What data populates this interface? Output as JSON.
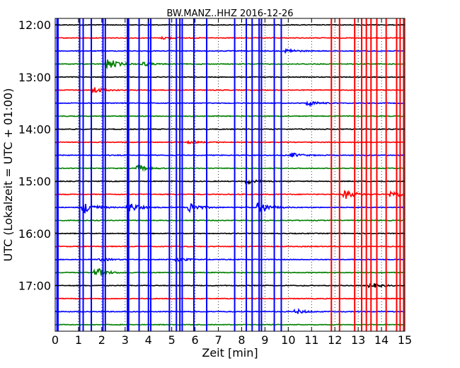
{
  "chart_data": {
    "type": "line",
    "title": "BW.MANZ..HHZ 2016-12-26",
    "xlabel": "Zeit  [min]",
    "ylabel": "UTC (Lokalzeit = UTC + 01:00)",
    "xlim": [
      0,
      15
    ],
    "x_ticks": [
      0,
      1,
      2,
      3,
      4,
      5,
      6,
      7,
      8,
      9,
      10,
      11,
      12,
      13,
      14,
      15
    ],
    "x_tick_labels": [
      "0",
      "1",
      "2",
      "3",
      "4",
      "5",
      "6",
      "7",
      "8",
      "9",
      "10",
      "11",
      "12",
      "13",
      "14",
      "15"
    ],
    "y_ticks_minutes": [
      720,
      780,
      840,
      900,
      960,
      1020
    ],
    "y_tick_labels": [
      "12:00",
      "13:00",
      "14:00",
      "15:00",
      "16:00",
      "17:00"
    ],
    "trace_interval_minutes": 15,
    "first_trace_minutes": 720,
    "vertical_grid": "dotted, every 1 min",
    "colors": {
      "black": "#000000",
      "red": "#ff0000",
      "blue": "#0000ff",
      "green": "#008000"
    },
    "color_cycle": [
      "black",
      "red",
      "blue",
      "green"
    ],
    "series": [
      {
        "name": "12:00",
        "color": "black"
      },
      {
        "name": "12:15",
        "color": "red",
        "events": [
          {
            "t": 4.7,
            "amp": 0.2
          }
        ]
      },
      {
        "name": "12:30",
        "color": "blue",
        "events": [
          {
            "t": 10.0,
            "amp": 0.3
          }
        ]
      },
      {
        "name": "12:45",
        "color": "green",
        "events": [
          {
            "t": 2.3,
            "amp": 0.9
          },
          {
            "t": 3.8,
            "amp": 0.3
          }
        ]
      },
      {
        "name": "13:00",
        "color": "black"
      },
      {
        "name": "13:15",
        "color": "red",
        "events": [
          {
            "t": 1.7,
            "amp": 0.5
          }
        ]
      },
      {
        "name": "13:30",
        "color": "blue",
        "events": [
          {
            "t": 10.9,
            "amp": 0.4
          }
        ]
      },
      {
        "name": "13:45",
        "color": "green"
      },
      {
        "name": "14:00",
        "color": "black"
      },
      {
        "name": "14:15",
        "color": "red",
        "events": [
          {
            "t": 5.8,
            "amp": 0.2
          }
        ]
      },
      {
        "name": "14:30",
        "color": "blue",
        "events": [
          {
            "t": 10.2,
            "amp": 0.35
          }
        ]
      },
      {
        "name": "14:45",
        "color": "green",
        "events": [
          {
            "t": 3.6,
            "amp": 0.5
          }
        ]
      },
      {
        "name": "15:00",
        "color": "black",
        "events": [
          {
            "t": 8.3,
            "amp": 0.35
          }
        ]
      },
      {
        "name": "15:15",
        "color": "red",
        "events": [
          {
            "t": 12.5,
            "amp": 0.75
          },
          {
            "t": 14.5,
            "amp": 0.6
          }
        ]
      },
      {
        "name": "15:30",
        "color": "blue",
        "events": [
          {
            "t": 1.3,
            "amp": 1.0
          },
          {
            "t": 3.2,
            "amp": 0.8
          },
          {
            "t": 5.8,
            "amp": 0.8
          },
          {
            "t": 8.8,
            "amp": 1.0
          }
        ]
      },
      {
        "name": "15:45",
        "color": "green"
      },
      {
        "name": "16:00",
        "color": "black"
      },
      {
        "name": "16:15",
        "color": "red"
      },
      {
        "name": "16:30",
        "color": "blue",
        "events": [
          {
            "t": 2.0,
            "amp": 0.25
          },
          {
            "t": 5.3,
            "amp": 0.3
          }
        ]
      },
      {
        "name": "16:45",
        "color": "green",
        "events": [
          {
            "t": 1.8,
            "amp": 0.8
          }
        ]
      },
      {
        "name": "17:00",
        "color": "black",
        "events": [
          {
            "t": 13.6,
            "amp": 0.4
          }
        ]
      },
      {
        "name": "17:15",
        "color": "red"
      },
      {
        "name": "17:30",
        "color": "blue",
        "events": [
          {
            "t": 10.4,
            "amp": 0.35
          }
        ]
      },
      {
        "name": "17:45",
        "color": "green"
      }
    ],
    "spikes": [
      {
        "t": 0.08,
        "color": "blue"
      },
      {
        "t": 0.12,
        "color": "blue"
      },
      {
        "t": 1.05,
        "color": "blue"
      },
      {
        "t": 1.2,
        "color": "blue"
      },
      {
        "t": 1.55,
        "color": "blue"
      },
      {
        "t": 2.05,
        "color": "blue"
      },
      {
        "t": 2.15,
        "color": "blue"
      },
      {
        "t": 3.1,
        "color": "blue"
      },
      {
        "t": 3.15,
        "color": "blue"
      },
      {
        "t": 3.6,
        "color": "blue"
      },
      {
        "t": 4.0,
        "color": "blue"
      },
      {
        "t": 4.1,
        "color": "blue"
      },
      {
        "t": 4.9,
        "color": "blue"
      },
      {
        "t": 5.2,
        "color": "blue"
      },
      {
        "t": 5.35,
        "color": "blue"
      },
      {
        "t": 5.45,
        "color": "blue"
      },
      {
        "t": 5.95,
        "color": "blue"
      },
      {
        "t": 6.5,
        "color": "blue"
      },
      {
        "t": 7.7,
        "color": "blue"
      },
      {
        "t": 8.2,
        "color": "blue"
      },
      {
        "t": 8.45,
        "color": "blue"
      },
      {
        "t": 8.75,
        "color": "blue"
      },
      {
        "t": 8.85,
        "color": "blue"
      },
      {
        "t": 9.4,
        "color": "blue"
      },
      {
        "t": 9.7,
        "color": "blue"
      },
      {
        "t": 11.85,
        "color": "red"
      },
      {
        "t": 12.2,
        "color": "red"
      },
      {
        "t": 12.85,
        "color": "red"
      },
      {
        "t": 13.15,
        "color": "red"
      },
      {
        "t": 13.35,
        "color": "red"
      },
      {
        "t": 13.55,
        "color": "red"
      },
      {
        "t": 13.8,
        "color": "red"
      },
      {
        "t": 14.2,
        "color": "red"
      },
      {
        "t": 14.65,
        "color": "red"
      },
      {
        "t": 14.8,
        "color": "red"
      },
      {
        "t": 14.95,
        "color": "red"
      }
    ]
  }
}
